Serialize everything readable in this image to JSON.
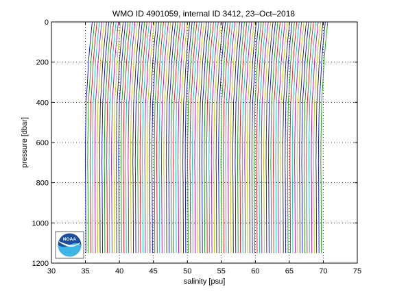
{
  "chart_data": {
    "type": "line",
    "title": "WMO ID 4901059, internal ID 3412, 23–Oct–2018",
    "xlabel": "salinity [psu]",
    "ylabel": "pressure [dbar]",
    "xlim": [
      30,
      75
    ],
    "ylim": [
      0,
      1200
    ],
    "y_reversed": true,
    "x_ticks": [
      "30",
      "35",
      "40",
      "45",
      "50",
      "55",
      "60",
      "65",
      "70",
      "75"
    ],
    "y_ticks": [
      "0",
      "200",
      "400",
      "600",
      "800",
      "1000",
      "1200"
    ],
    "grid": "dotted",
    "legend": "none",
    "waterfall": {
      "profile_count": 100,
      "base_salinity": 35.0,
      "offset_step": 0.35,
      "deep_value_offset": 34.4,
      "colors": [
        "#0000ff",
        "#00a000",
        "#ff0000",
        "#00bfbf",
        "#bf00bf",
        "#bfbf00",
        "#202020"
      ]
    },
    "reference_profile": {
      "pressure": [
        0,
        100,
        200,
        300,
        400,
        500,
        600,
        650,
        700,
        750,
        800,
        900,
        1000,
        1100,
        1150
      ],
      "salinity": [
        35.9,
        35.6,
        35.35,
        35.2,
        35.0,
        34.95,
        34.9,
        34.9,
        34.88,
        34.9,
        34.92,
        34.93,
        34.95,
        34.96,
        34.97
      ]
    }
  },
  "logo": {
    "name": "noaa-logo",
    "text": "NOAA"
  }
}
